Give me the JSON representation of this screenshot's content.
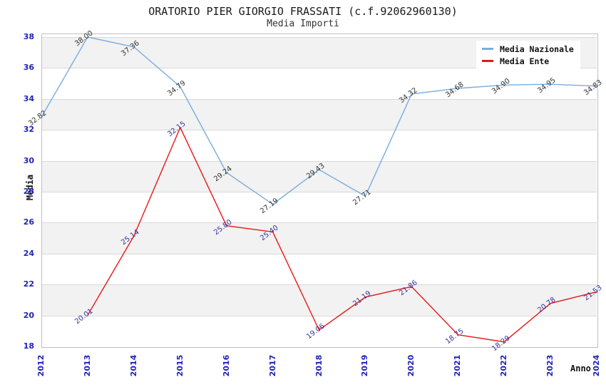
{
  "header": {
    "title": "ORATORIO PIER GIORGIO FRASSATI (c.f.92062960130)",
    "subtitle": "Media Importi"
  },
  "axes": {
    "y_label": "Media",
    "x_label": "Anno",
    "y_ticks": [
      38,
      36,
      34,
      32,
      30,
      28,
      26,
      24,
      22,
      20,
      18
    ],
    "x_ticks": [
      "2012",
      "2013",
      "2014",
      "2015",
      "2016",
      "2017",
      "2018",
      "2019",
      "2020",
      "2021",
      "2022",
      "2023",
      "2024"
    ]
  },
  "legend": {
    "items": [
      {
        "label": "Media Nazionale",
        "color": "#79ade0"
      },
      {
        "label": "Media Ente",
        "color": "#e81717"
      }
    ]
  },
  "colors": {
    "tick_label": "#2222bb",
    "band": "#f2f2f2",
    "gridline": "#d9d9d9",
    "plot_border": "#c0c0c0",
    "national_label": "#333333",
    "ente_label": "#333399"
  },
  "chart_data": {
    "type": "line",
    "title": "ORATORIO PIER GIORGIO FRASSATI (c.f.92062960130)",
    "subtitle": "Media Importi",
    "xlabel": "Anno",
    "ylabel": "Media",
    "x": [
      2012,
      2013,
      2014,
      2015,
      2016,
      2017,
      2018,
      2019,
      2020,
      2021,
      2022,
      2023,
      2024
    ],
    "ylim": [
      18,
      38.2
    ],
    "grid": "horizontal",
    "striped_background": true,
    "legend_position": "top-right",
    "series": [
      {
        "name": "Media Nazionale",
        "color": "#79ade0",
        "label_color": "#333333",
        "values": [
          32.82,
          38.0,
          37.36,
          34.79,
          29.24,
          27.19,
          29.43,
          27.71,
          34.32,
          34.68,
          34.9,
          34.95,
          34.83
        ]
      },
      {
        "name": "Media Ente",
        "color": "#e81717",
        "label_color": "#333399",
        "values": [
          null,
          20.01,
          25.14,
          32.15,
          25.8,
          25.4,
          19.06,
          21.19,
          21.86,
          18.75,
          18.29,
          20.78,
          21.53
        ]
      }
    ]
  }
}
